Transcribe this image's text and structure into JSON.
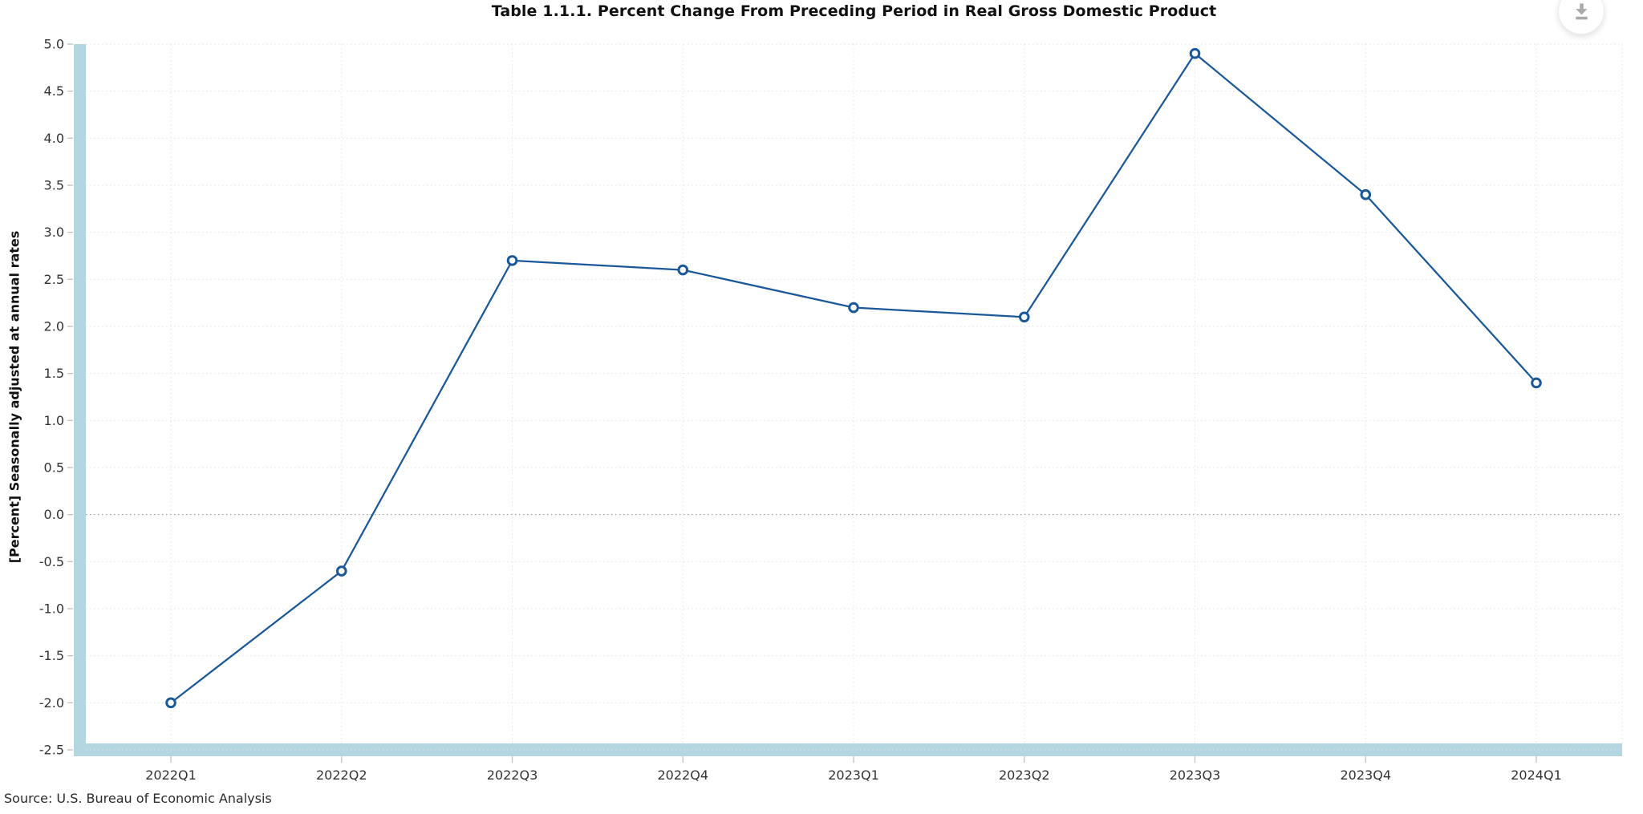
{
  "header": {
    "download_button": {
      "icon": "download-icon"
    }
  },
  "chart_data": {
    "type": "line",
    "title": "Table 1.1.1. Percent Change From Preceding Period in Real Gross Domestic Product",
    "categories": [
      "2022Q1",
      "2022Q2",
      "2022Q3",
      "2022Q4",
      "2023Q1",
      "2023Q2",
      "2023Q3",
      "2023Q4",
      "2024Q1"
    ],
    "values": [
      -2.0,
      -0.6,
      2.7,
      2.6,
      2.2,
      2.1,
      4.9,
      3.4,
      1.4
    ],
    "ylabel": "[Percent] Seasonally adjusted at annual rates",
    "ylim": [
      -2.5,
      5.0
    ],
    "ytick_step": 0.5,
    "grid": true,
    "legend": "none",
    "marker": "open-circle",
    "source": "Source: U.S. Bureau of Economic Analysis",
    "colors": {
      "line": "#1b5899",
      "marker_fill": "#ffffff",
      "axis_band": "#b4d6e0",
      "gridline": "#e2e2e2",
      "zero_line": "#909090",
      "tick_mark": "#c6c6c6",
      "tick_text": "#333333"
    }
  }
}
